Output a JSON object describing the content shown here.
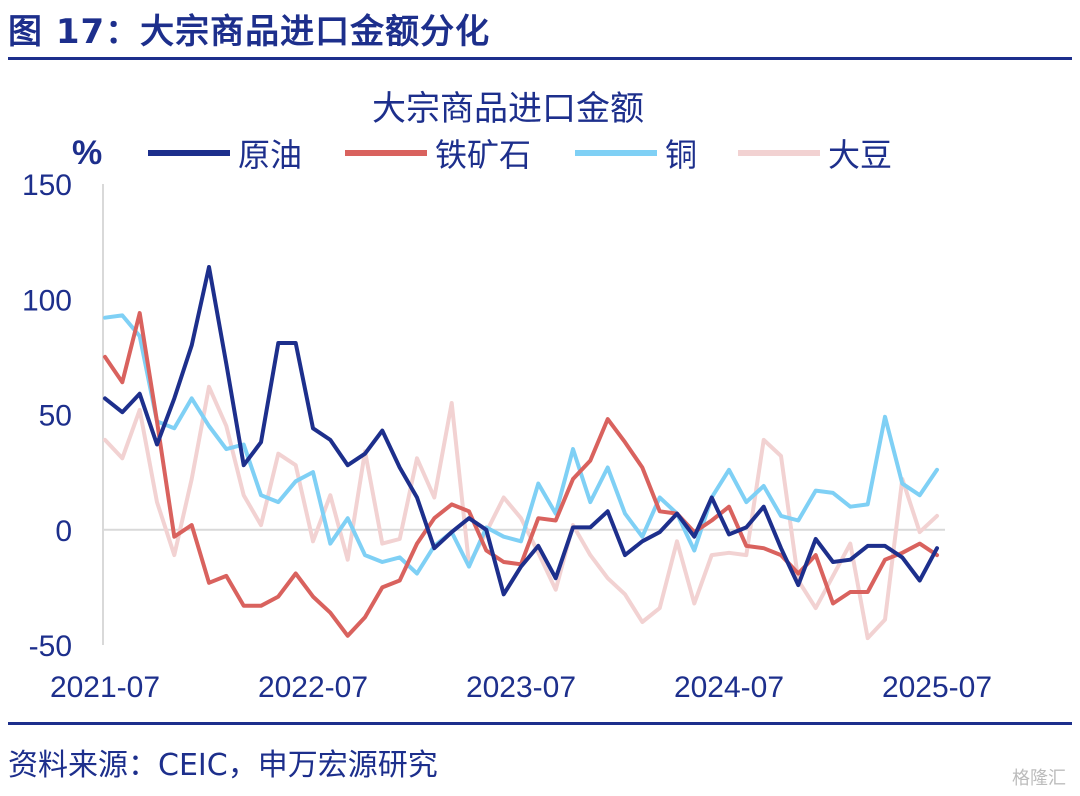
{
  "figure_title": "图 17：大宗商品进口金额分化",
  "source_note": "资料来源：CEIC，申万宏源研究",
  "watermark": "格隆汇",
  "chart_data": {
    "type": "line",
    "title": "大宗商品进口金额",
    "ylabel": "%",
    "xlabel": "",
    "ylim": [
      -50,
      150
    ],
    "yticks": [
      -50,
      0,
      50,
      100,
      150
    ],
    "xtick_labels": [
      "2021-07",
      "2022-07",
      "2023-07",
      "2024-07",
      "2025-07"
    ],
    "xtick_index": [
      0,
      12,
      24,
      36,
      48
    ],
    "legend_position": "top",
    "x": [
      "2021-07",
      "2021-08",
      "2021-09",
      "2021-10",
      "2021-11",
      "2021-12",
      "2022-01",
      "2022-02",
      "2022-03",
      "2022-04",
      "2022-05",
      "2022-06",
      "2022-07",
      "2022-08",
      "2022-09",
      "2022-10",
      "2022-11",
      "2022-12",
      "2023-01",
      "2023-02",
      "2023-03",
      "2023-04",
      "2023-05",
      "2023-06",
      "2023-07",
      "2023-08",
      "2023-09",
      "2023-10",
      "2023-11",
      "2023-12",
      "2024-01",
      "2024-02",
      "2024-03",
      "2024-04",
      "2024-05",
      "2024-06",
      "2024-07",
      "2024-08",
      "2024-09",
      "2024-10",
      "2024-11",
      "2024-12",
      "2025-01",
      "2025-02",
      "2025-03",
      "2025-04",
      "2025-05",
      "2025-06",
      "2025-07"
    ],
    "series": [
      {
        "name": "原油",
        "color": "#1d2f8c",
        "values": [
          57,
          51,
          59,
          37,
          57,
          80,
          114,
          72,
          28,
          38,
          81,
          81,
          44,
          39,
          28,
          33,
          43,
          27,
          14,
          -8,
          -1,
          5,
          0,
          -28,
          -16,
          -7,
          -21,
          1,
          1,
          8,
          -11,
          -5,
          -1,
          7,
          -3,
          14,
          -2,
          1,
          10,
          -8,
          -24,
          -4,
          -14,
          -13,
          -7,
          -7,
          -12,
          -22,
          -8
        ]
      },
      {
        "name": "铁矿石",
        "color": "#d9625e",
        "values": [
          75,
          64,
          94,
          47,
          -3,
          2,
          -23,
          -20,
          -33,
          -33,
          -29,
          -19,
          -29,
          -36,
          -46,
          -38,
          -25,
          -22,
          -6,
          5,
          11,
          8,
          -9,
          -14,
          -15,
          5,
          4,
          22,
          30,
          48,
          38,
          27,
          8,
          7,
          -1,
          4,
          10,
          -7,
          -8,
          -11,
          -19,
          -11,
          -32,
          -27,
          -27,
          -13,
          -10,
          -6,
          -11
        ]
      },
      {
        "name": "铜",
        "color": "#7fd0f5",
        "values": [
          92,
          93,
          84,
          47,
          44,
          57,
          45,
          35,
          37,
          15,
          12,
          21,
          25,
          -6,
          5,
          -11,
          -14,
          -12,
          -19,
          -7,
          -1,
          -16,
          1,
          -3,
          -5,
          20,
          7,
          35,
          12,
          27,
          7,
          -3,
          14,
          7,
          -9,
          14,
          26,
          12,
          19,
          6,
          4,
          17,
          16,
          10,
          11,
          49,
          20,
          15,
          26
        ]
      },
      {
        "name": "大豆",
        "color": "#f2d2d2",
        "values": [
          39,
          31,
          52,
          12,
          -11,
          22,
          62,
          45,
          15,
          2,
          33,
          28,
          -5,
          15,
          -13,
          34,
          -6,
          -4,
          31,
          14,
          55,
          -15,
          -1,
          14,
          5,
          -10,
          -26,
          2,
          -11,
          -21,
          -28,
          -40,
          -34,
          -5,
          -32,
          -11,
          -10,
          -11,
          39,
          32,
          -22,
          -34,
          -20,
          -6,
          -47,
          -39,
          22,
          -1,
          6
        ]
      }
    ]
  }
}
